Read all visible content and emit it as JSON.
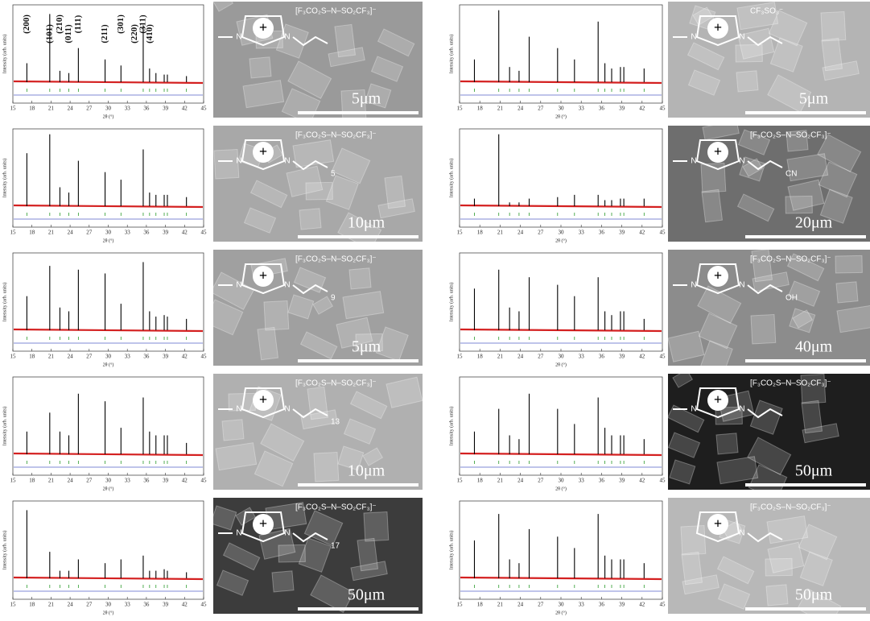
{
  "xrd_common": {
    "xlabel": "2θ (°)",
    "ylabel": "Intensity (arb. units)",
    "xlim": [
      15,
      45
    ],
    "xticks": [
      15,
      18,
      21,
      24,
      27,
      30,
      33,
      36,
      39,
      42,
      45
    ],
    "ylim": [
      0,
      100
    ],
    "peaks_x": [
      17.2,
      20.8,
      22.4,
      23.8,
      25.3,
      29.5,
      32.0,
      35.5,
      36.5,
      37.5,
      38.8,
      39.3,
      42.3
    ]
  },
  "cation": {
    "charge": "+",
    "atom": "N"
  },
  "panels": [
    {
      "peaks_y": [
        25,
        90,
        15,
        12,
        45,
        30,
        22,
        75,
        18,
        12,
        10,
        10,
        8
      ],
      "hkl": [
        {
          "x": 17.2,
          "label": "(200)"
        },
        {
          "x": 20.8,
          "label": "(101)"
        },
        {
          "x": 22.4,
          "label": "(210)"
        },
        {
          "x": 23.8,
          "label": "(011)"
        },
        {
          "x": 25.3,
          "label": "(111)"
        },
        {
          "x": 29.5,
          "label": "(211)"
        },
        {
          "x": 32.0,
          "label": "(301)"
        },
        {
          "x": 34.2,
          "label": "(220)"
        },
        {
          "x": 35.5,
          "label": "(311)"
        },
        {
          "x": 36.6,
          "label": "(410)"
        }
      ],
      "atoms": [
        "N",
        "N"
      ],
      "anion": "[F₃CO₂S–N–SO₂CF₃]⁻",
      "scale": "5μm",
      "bg": "#9a9a9a"
    },
    {
      "peaks_y": [
        30,
        95,
        20,
        15,
        60,
        45,
        30,
        80,
        25,
        18,
        20,
        20,
        18
      ],
      "atoms": [
        "N",
        "N"
      ],
      "anion": "CF₃SO₃⁻",
      "scale": "5μm",
      "bg": "#b4b4b4"
    },
    {
      "peaks_y": [
        70,
        95,
        25,
        18,
        60,
        45,
        35,
        75,
        18,
        15,
        15,
        15,
        12
      ],
      "atoms": [
        "N",
        "N"
      ],
      "anion": "[F₃CO₂S–N–SO₂CF₃]⁻",
      "chain": "5",
      "scale": "10μm",
      "bg": "#a8a8a8"
    },
    {
      "peaks_y": [
        10,
        95,
        5,
        5,
        10,
        12,
        15,
        15,
        8,
        8,
        10,
        10,
        10
      ],
      "atoms": [
        "N",
        "N"
      ],
      "anion": "[F₃CO₂S–N–SO₂CF₃]⁻",
      "chain": "CN",
      "scale": "20μm",
      "bg": "#6e6e6e"
    },
    {
      "peaks_y": [
        45,
        85,
        30,
        25,
        80,
        75,
        35,
        90,
        25,
        18,
        20,
        18,
        15
      ],
      "atoms": [
        "N",
        "N"
      ],
      "anion": "[F₃CO₂S–N–SO₂CF₃]⁻",
      "chain": "9",
      "scale": "5μm",
      "bg": "#a0a0a0"
    },
    {
      "peaks_y": [
        55,
        80,
        30,
        25,
        70,
        60,
        45,
        70,
        25,
        20,
        25,
        25,
        15
      ],
      "atoms": [
        "N",
        "N"
      ],
      "anion": "[F₃CO₂S–N–SO₂CF₃]⁻",
      "chain": "OH",
      "scale": "40μm",
      "bg": "#8c8c8c"
    },
    {
      "peaks_y": [
        30,
        55,
        30,
        25,
        80,
        70,
        35,
        75,
        30,
        25,
        25,
        25,
        15
      ],
      "atoms": [
        "N",
        "N"
      ],
      "anion": "[F₃CO₂S–N–SO₂CF₃]⁻",
      "chain": "13",
      "scale": "10μm",
      "bg": "#b0b0b0"
    },
    {
      "peaks_y": [
        30,
        60,
        25,
        20,
        80,
        60,
        40,
        75,
        35,
        25,
        25,
        25,
        20
      ],
      "atoms": [
        "N",
        "N"
      ],
      "anion": "[F₃CO₂S–N–SO₂CF₃]⁻",
      "scale": "50μm",
      "bg": "#1e1e1e"
    },
    {
      "peaks_y": [
        90,
        35,
        10,
        10,
        25,
        20,
        25,
        30,
        10,
        10,
        12,
        10,
        8
      ],
      "atoms": [
        "N",
        "N"
      ],
      "anion": "[F₃CO₂S–N–SO₂CF₃]⁻",
      "chain": "17",
      "scale": "50μm",
      "bg": "#3c3c3c"
    },
    {
      "peaks_y": [
        50,
        85,
        25,
        20,
        65,
        55,
        40,
        85,
        30,
        25,
        25,
        25,
        20
      ],
      "atoms": [
        "N"
      ],
      "anion": "[F₃CO₂S–N–SO₂CF₃]⁻",
      "scale": "50μm",
      "bg": "#b8b8b8"
    }
  ]
}
